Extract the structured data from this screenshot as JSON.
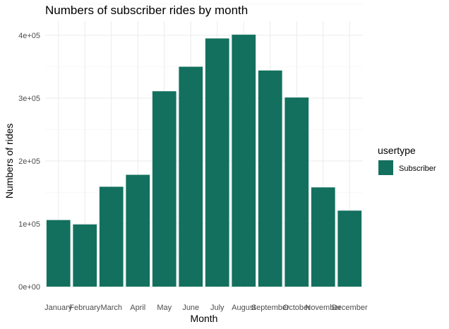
{
  "chart_data": {
    "type": "bar",
    "title": "Numbers of subscriber rides by month",
    "xlabel": "Month",
    "ylabel": "Numbers of rides",
    "categories": [
      "January",
      "February",
      "March",
      "April",
      "May",
      "June",
      "July",
      "August",
      "September",
      "October",
      "November",
      "December"
    ],
    "series": [
      {
        "name": "Subscriber",
        "color": "#13705e",
        "values": [
          106000,
          99000,
          159000,
          178000,
          311000,
          350000,
          395000,
          401000,
          344000,
          301000,
          158000,
          121000
        ]
      }
    ],
    "ylim": [
      0,
      410000
    ],
    "yticks": [
      0,
      100000,
      200000,
      300000,
      400000
    ],
    "ytick_labels": [
      "0e+00",
      "1e+05",
      "2e+05",
      "3e+05",
      "4e+05"
    ],
    "grid": true,
    "legend": {
      "title": "usertype",
      "position": "right",
      "entries": [
        "Subscriber"
      ]
    }
  }
}
